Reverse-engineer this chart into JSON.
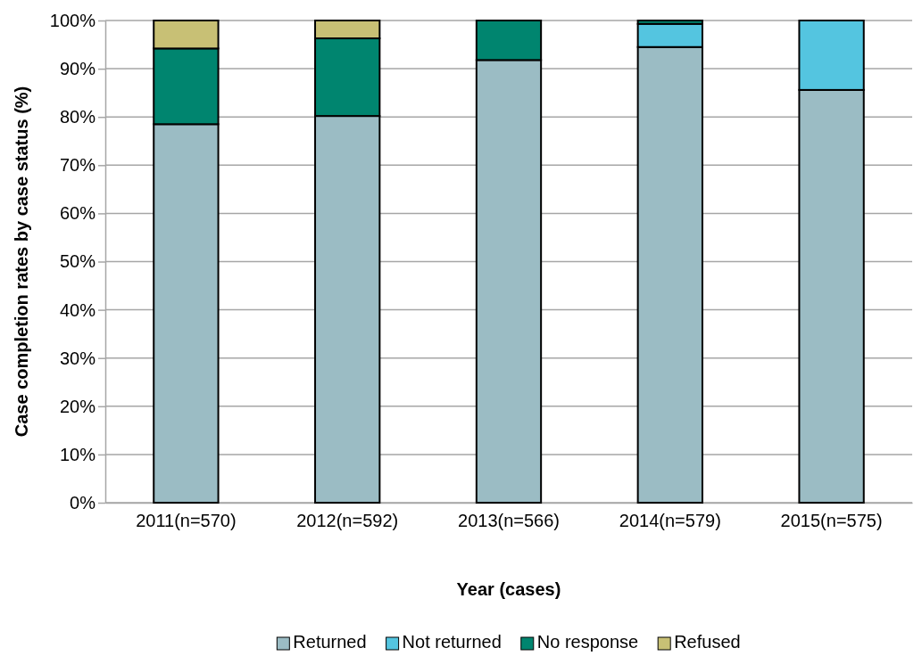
{
  "chart_data": {
    "type": "bar",
    "stacked": true,
    "xlabel": "Year (cases)",
    "ylabel": "Case completion rates by case status (%)",
    "categories": [
      "2011(n=570)",
      "2012(n=592)",
      "2013(n=566)",
      "2014(n=579)",
      "2015(n=575)"
    ],
    "series": [
      {
        "name": "Returned",
        "color": "#9bbcc4",
        "values": [
          78.5,
          80.2,
          91.8,
          94.5,
          85.6
        ]
      },
      {
        "name": "Not returned",
        "color": "#54c5e0",
        "values": [
          0,
          0,
          0,
          4.8,
          14.4
        ]
      },
      {
        "name": "No response",
        "color": "#00856f",
        "values": [
          15.7,
          16.1,
          8.2,
          0.7,
          0
        ]
      },
      {
        "name": "Refused",
        "color": "#c8c075",
        "values": [
          5.8,
          3.7,
          0,
          0,
          0
        ]
      }
    ],
    "ylim": [
      0,
      100
    ],
    "yticks": [
      {
        "value": 0,
        "label": "0%"
      },
      {
        "value": 10,
        "label": "10%"
      },
      {
        "value": 20,
        "label": "20%"
      },
      {
        "value": 30,
        "label": "30%"
      },
      {
        "value": 40,
        "label": "40%"
      },
      {
        "value": 50,
        "label": "50%"
      },
      {
        "value": 60,
        "label": "60%"
      },
      {
        "value": 70,
        "label": "70%"
      },
      {
        "value": 80,
        "label": "80%"
      },
      {
        "value": 90,
        "label": "90%"
      },
      {
        "value": 100,
        "label": "100%"
      }
    ],
    "grid": "y",
    "legend": "bottom"
  }
}
